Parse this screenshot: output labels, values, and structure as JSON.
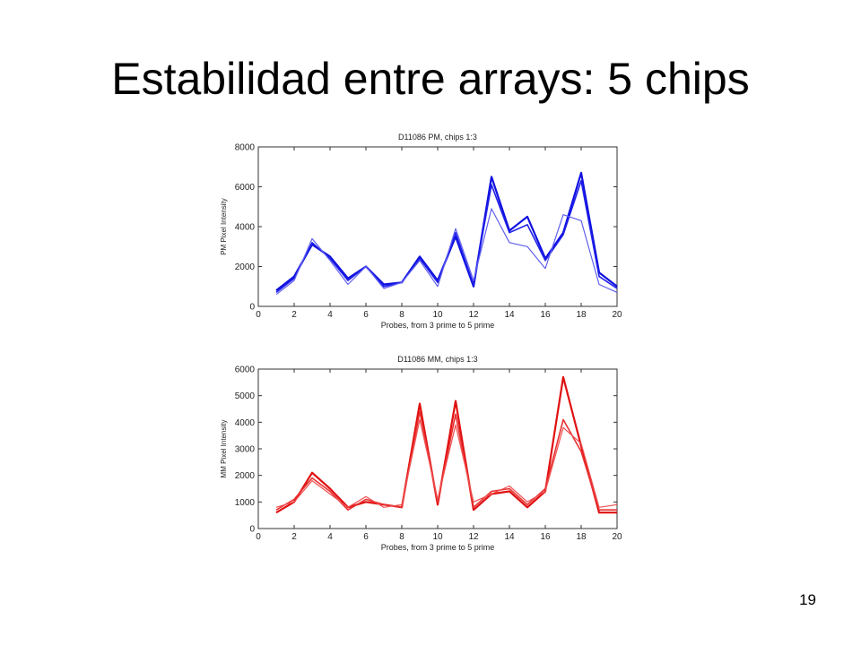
{
  "slide": {
    "title": "Estabilidad entre arrays: 5 chips",
    "page_number": "19"
  },
  "chart_data": [
    {
      "type": "line",
      "title": "D11086 PM, chips 1:3",
      "xlabel": "Probes, from 3 prime to 5 prime",
      "ylabel": "PM Pixel Intensity",
      "xlim": [
        0,
        20
      ],
      "ylim": [
        0,
        8000
      ],
      "xticks": [
        0,
        2,
        4,
        6,
        8,
        10,
        12,
        14,
        16,
        18,
        20
      ],
      "yticks": [
        0,
        2000,
        4000,
        6000,
        8000
      ],
      "grid": false,
      "colors": [
        "#1010e0",
        "#2020e8",
        "#6060f0"
      ],
      "x": [
        1,
        2,
        3,
        4,
        5,
        6,
        7,
        8,
        9,
        10,
        11,
        12,
        13,
        14,
        15,
        16,
        17,
        18,
        19,
        20
      ],
      "series": [
        {
          "values": [
            800,
            1500,
            3100,
            2500,
            1400,
            2000,
            1100,
            1200,
            2500,
            1300,
            3500,
            1000,
            6500,
            3800,
            4500,
            2400,
            3700,
            6700,
            1700,
            1000
          ]
        },
        {
          "values": [
            700,
            1400,
            3200,
            2400,
            1300,
            2000,
            1000,
            1200,
            2400,
            1200,
            3700,
            1100,
            6100,
            3700,
            4100,
            2300,
            3600,
            6300,
            1500,
            900
          ]
        },
        {
          "values": [
            600,
            1300,
            3400,
            2300,
            1100,
            2000,
            900,
            1200,
            2300,
            1000,
            3900,
            1300,
            4900,
            3200,
            3000,
            1900,
            4600,
            4300,
            1100,
            700
          ]
        }
      ]
    },
    {
      "type": "line",
      "title": "D11086 MM, chips 1:3",
      "xlabel": "Probes, from 3 prime to 5 prime",
      "ylabel": "MM Pixel Intensity",
      "xlim": [
        0,
        20
      ],
      "ylim": [
        0,
        6000
      ],
      "xticks": [
        0,
        2,
        4,
        6,
        8,
        10,
        12,
        14,
        16,
        18,
        20
      ],
      "yticks": [
        0,
        1000,
        2000,
        3000,
        4000,
        5000,
        6000
      ],
      "grid": false,
      "colors": [
        "#e01010",
        "#e83030",
        "#f05050"
      ],
      "x": [
        1,
        2,
        3,
        4,
        5,
        6,
        7,
        8,
        9,
        10,
        11,
        12,
        13,
        14,
        15,
        16,
        17,
        18,
        19,
        20
      ],
      "series": [
        {
          "values": [
            600,
            1000,
            2100,
            1500,
            800,
            1000,
            900,
            800,
            4700,
            900,
            4800,
            700,
            1300,
            1400,
            800,
            1400,
            5700,
            3100,
            600,
            600
          ]
        },
        {
          "values": [
            700,
            1100,
            1900,
            1400,
            700,
            1100,
            900,
            800,
            4400,
            1000,
            4300,
            800,
            1400,
            1500,
            900,
            1500,
            4100,
            2900,
            700,
            700
          ]
        },
        {
          "values": [
            800,
            1000,
            1800,
            1300,
            800,
            1200,
            800,
            900,
            4100,
            1100,
            3900,
            1000,
            1300,
            1600,
            1000,
            1400,
            3800,
            3200,
            800,
            900
          ]
        }
      ]
    }
  ]
}
